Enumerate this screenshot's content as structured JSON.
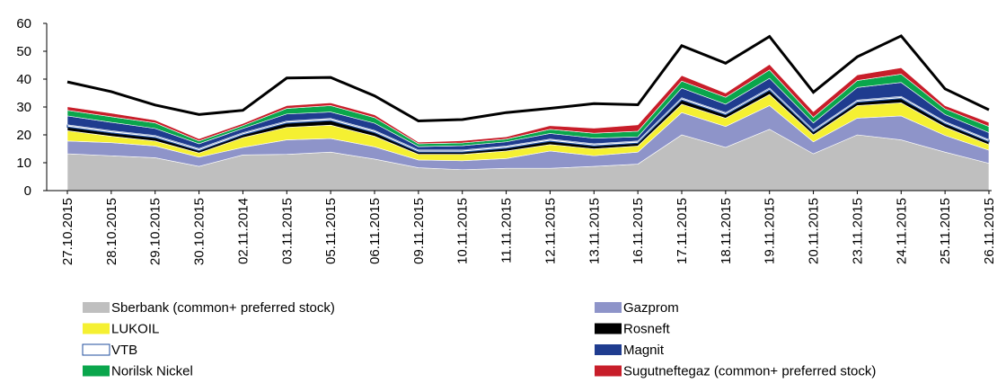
{
  "chart_data": {
    "type": "stacked_area",
    "categories": [
      "27.10.2015",
      "28.10.2015",
      "29.10.2015",
      "30.10.2015",
      "02.11.2014",
      "03.11.2015",
      "05.11.2015",
      "06.11.2015",
      "09.11.2015",
      "10.11.2015",
      "11.11.2015",
      "12.11.2015",
      "13.11.2015",
      "16.11.2015",
      "17.11.2015",
      "18.11.2015",
      "19.11.2015",
      "20.11.2015",
      "23.11.2015",
      "24.11.2015",
      "25.11.2015",
      "26.11.2015"
    ],
    "series": [
      {
        "name": "Sberbank (common+ preferred stock)",
        "color": "#bfbfbf",
        "values": [
          13.2,
          12.5,
          11.8,
          8.7,
          12.8,
          13,
          13.8,
          11.3,
          8.2,
          7.5,
          8,
          8,
          8.7,
          9.5,
          20,
          15.5,
          22,
          13.2,
          20,
          18.2,
          13.8,
          9.8
        ]
      },
      {
        "name": "Gazprom",
        "color": "#8e94c9",
        "values": [
          4.6,
          4.7,
          4.2,
          3.3,
          2.7,
          5.2,
          4.9,
          4.4,
          2.8,
          3.2,
          3.5,
          6.2,
          3.8,
          4.3,
          8,
          7.5,
          8.5,
          4.3,
          6,
          8.6,
          6,
          4.7
        ]
      },
      {
        "name": "LUKOIL",
        "color": "#f5f032",
        "values": [
          3.7,
          2.3,
          1.8,
          1.5,
          3.5,
          4.5,
          4.8,
          3.8,
          2,
          2.3,
          2.7,
          2.3,
          2.5,
          2.2,
          3,
          3,
          4,
          2.5,
          4.5,
          4.7,
          3,
          2
        ]
      },
      {
        "name": "Rosneft",
        "color": "#000000",
        "values": [
          1.3,
          1.2,
          1.2,
          0.8,
          1,
          1.5,
          1.6,
          1.3,
          0.8,
          0.8,
          1,
          1.2,
          1,
          1,
          1.5,
          1.2,
          1.5,
          1,
          1.2,
          1.5,
          1.2,
          1
        ]
      },
      {
        "name": "VTB",
        "color": "#ffffff",
        "edge": "#1f4e9c",
        "values": [
          0.8,
          0.8,
          0.8,
          0.8,
          0.8,
          0.8,
          0.8,
          0.8,
          0.8,
          0.8,
          0.8,
          0.8,
          0.8,
          0.8,
          0.8,
          0.8,
          0.8,
          0.8,
          0.8,
          0.8,
          0.8,
          0.8
        ]
      },
      {
        "name": "Magnit",
        "color": "#1f3c8f",
        "values": [
          3.2,
          3,
          2.5,
          1.7,
          1.5,
          2.5,
          2.3,
          2.6,
          1.2,
          1.5,
          1.5,
          2,
          2,
          1.5,
          3.5,
          3,
          3.5,
          2.5,
          4.5,
          5,
          2.5,
          2.5
        ]
      },
      {
        "name": "Norilsk Nickel",
        "color": "#0aa64c",
        "values": [
          2,
          2,
          2,
          1,
          1,
          2,
          2.3,
          2,
          1,
          1,
          1,
          1.5,
          1.8,
          2,
          2.5,
          2.5,
          3,
          2,
          2.5,
          3,
          2,
          2.2
        ]
      },
      {
        "name": "Sugutneftegaz (common+ preferred stock)",
        "color": "#c81e2a",
        "values": [
          1.3,
          1.3,
          1,
          0.8,
          0.8,
          1,
          1,
          1,
          0.6,
          0.8,
          0.8,
          1.3,
          1.8,
          2.3,
          2,
          1.5,
          2,
          2,
          2,
          2.3,
          1.2,
          1.5
        ]
      }
    ],
    "line": {
      "color": "#000000",
      "values": [
        39,
        35.5,
        30.7,
        27.3,
        28.8,
        40.4,
        40.6,
        34,
        25,
        25.5,
        28,
        29.5,
        31.2,
        30.8,
        52,
        45.7,
        55.3,
        35.3,
        48,
        55.5,
        36.5,
        29
      ]
    },
    "ylim": [
      0,
      60
    ],
    "yticks": [
      0,
      10,
      20,
      30,
      40,
      50,
      60
    ]
  }
}
